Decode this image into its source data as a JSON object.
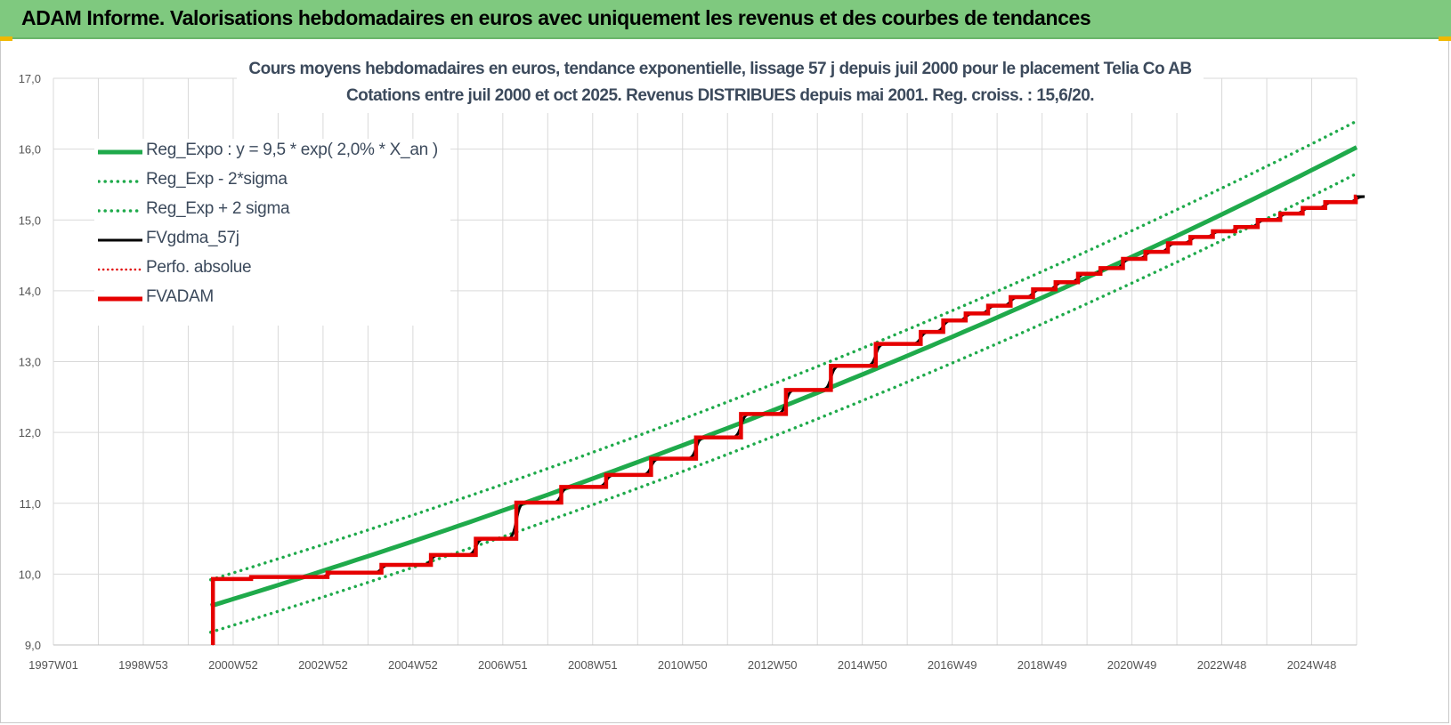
{
  "header": {
    "title": "ADAM Informe. Valorisations hebdomadaires en euros avec uniquement les revenus et des courbes de tendances"
  },
  "colors": {
    "header_bg": "#7fc97f",
    "reg_green": "#1faa4b",
    "dotted_green": "#1faa4b",
    "fvgdma_black": "#000000",
    "perfo_red_dotted": "#e00000",
    "fvadam_red": "#e60000",
    "grid": "#d9d9d9"
  },
  "chart_data": {
    "type": "line",
    "title": "Cours moyens hebdomadaires en euros, tendance exponentielle, lissage 57 j depuis juil 2000 pour le placement Telia Co AB",
    "subtitle": "Cotations entre juil 2000 et oct 2025. Revenus DISTRIBUES depuis mai 2001. Reg. croiss. : 15,6/20.",
    "xlabel": "",
    "ylabel": "",
    "x_tick_labels": [
      "1997W01",
      "1998W53",
      "2000W52",
      "2002W52",
      "2004W52",
      "2006W51",
      "2008W51",
      "2010W50",
      "2012W50",
      "2014W50",
      "2016W49",
      "2018W49",
      "2020W49",
      "2022W48",
      "2024W48"
    ],
    "y_tick_labels": [
      "9,0",
      "10,0",
      "11,0",
      "12,0",
      "13,0",
      "14,0",
      "15,0",
      "16,0",
      "17,0"
    ],
    "xlim": [
      1997.0,
      2026.0
    ],
    "ylim": [
      9.0,
      17.0
    ],
    "grid": true,
    "legend_position": "top-left",
    "regression": {
      "start_year": 2000.5,
      "a": 9.55,
      "rate": 0.0203,
      "sigma_low": -0.37,
      "sigma_high": 0.37
    },
    "series": [
      {
        "name": "Reg_Expo : y = 9,5 * exp( 2,0% *  X_an )",
        "style": "solid",
        "color": "#1faa4b",
        "x": [
          2000.5,
          2005.5,
          2010.5,
          2015.5,
          2020.5,
          2025.98
        ],
        "y": [
          9.55,
          10.57,
          11.68,
          12.93,
          14.3,
          15.85
        ]
      },
      {
        "name": "Reg_Exp - 2*sigma",
        "style": "dotted",
        "color": "#1faa4b",
        "x": [
          2000.5,
          2005.5,
          2010.5,
          2015.5,
          2020.5,
          2025.98
        ],
        "y": [
          9.18,
          10.2,
          11.31,
          12.56,
          13.93,
          15.48
        ]
      },
      {
        "name": "Reg_Exp + 2 sigma",
        "style": "dotted",
        "color": "#1faa4b",
        "x": [
          2000.5,
          2005.5,
          2010.5,
          2015.5,
          2020.5,
          2025.98
        ],
        "y": [
          9.92,
          10.94,
          12.05,
          13.3,
          14.67,
          16.22
        ]
      },
      {
        "name": "FVgdma_57j",
        "style": "solid-thin",
        "color": "#000000"
      },
      {
        "name": "Perfo. absolue",
        "style": "dotted",
        "color": "#e00000"
      },
      {
        "name": "FVADAM",
        "style": "solid-thick",
        "color": "#e60000",
        "steps": [
          {
            "x": 2000.55,
            "y": 9.93
          },
          {
            "x": 2001.4,
            "y": 9.96
          },
          {
            "x": 2003.1,
            "y": 10.02
          },
          {
            "x": 2004.3,
            "y": 10.13
          },
          {
            "x": 2005.4,
            "y": 10.27
          },
          {
            "x": 2006.4,
            "y": 10.5
          },
          {
            "x": 2007.3,
            "y": 11.01
          },
          {
            "x": 2008.3,
            "y": 11.23
          },
          {
            "x": 2009.3,
            "y": 11.4
          },
          {
            "x": 2010.3,
            "y": 11.63
          },
          {
            "x": 2011.3,
            "y": 11.93
          },
          {
            "x": 2012.3,
            "y": 12.26
          },
          {
            "x": 2013.3,
            "y": 12.6
          },
          {
            "x": 2014.3,
            "y": 12.94
          },
          {
            "x": 2015.3,
            "y": 13.25
          },
          {
            "x": 2016.3,
            "y": 13.42
          },
          {
            "x": 2016.8,
            "y": 13.58
          },
          {
            "x": 2017.3,
            "y": 13.68
          },
          {
            "x": 2017.8,
            "y": 13.79
          },
          {
            "x": 2018.3,
            "y": 13.91
          },
          {
            "x": 2018.8,
            "y": 14.02
          },
          {
            "x": 2019.3,
            "y": 14.12
          },
          {
            "x": 2019.8,
            "y": 14.24
          },
          {
            "x": 2020.3,
            "y": 14.32
          },
          {
            "x": 2020.8,
            "y": 14.45
          },
          {
            "x": 2021.3,
            "y": 14.55
          },
          {
            "x": 2021.8,
            "y": 14.67
          },
          {
            "x": 2022.3,
            "y": 14.76
          },
          {
            "x": 2022.8,
            "y": 14.84
          },
          {
            "x": 2023.3,
            "y": 14.9
          },
          {
            "x": 2023.8,
            "y": 15.0
          },
          {
            "x": 2024.3,
            "y": 15.09
          },
          {
            "x": 2024.8,
            "y": 15.17
          },
          {
            "x": 2025.3,
            "y": 15.25
          },
          {
            "x": 2025.98,
            "y": 15.33
          }
        ]
      }
    ]
  }
}
